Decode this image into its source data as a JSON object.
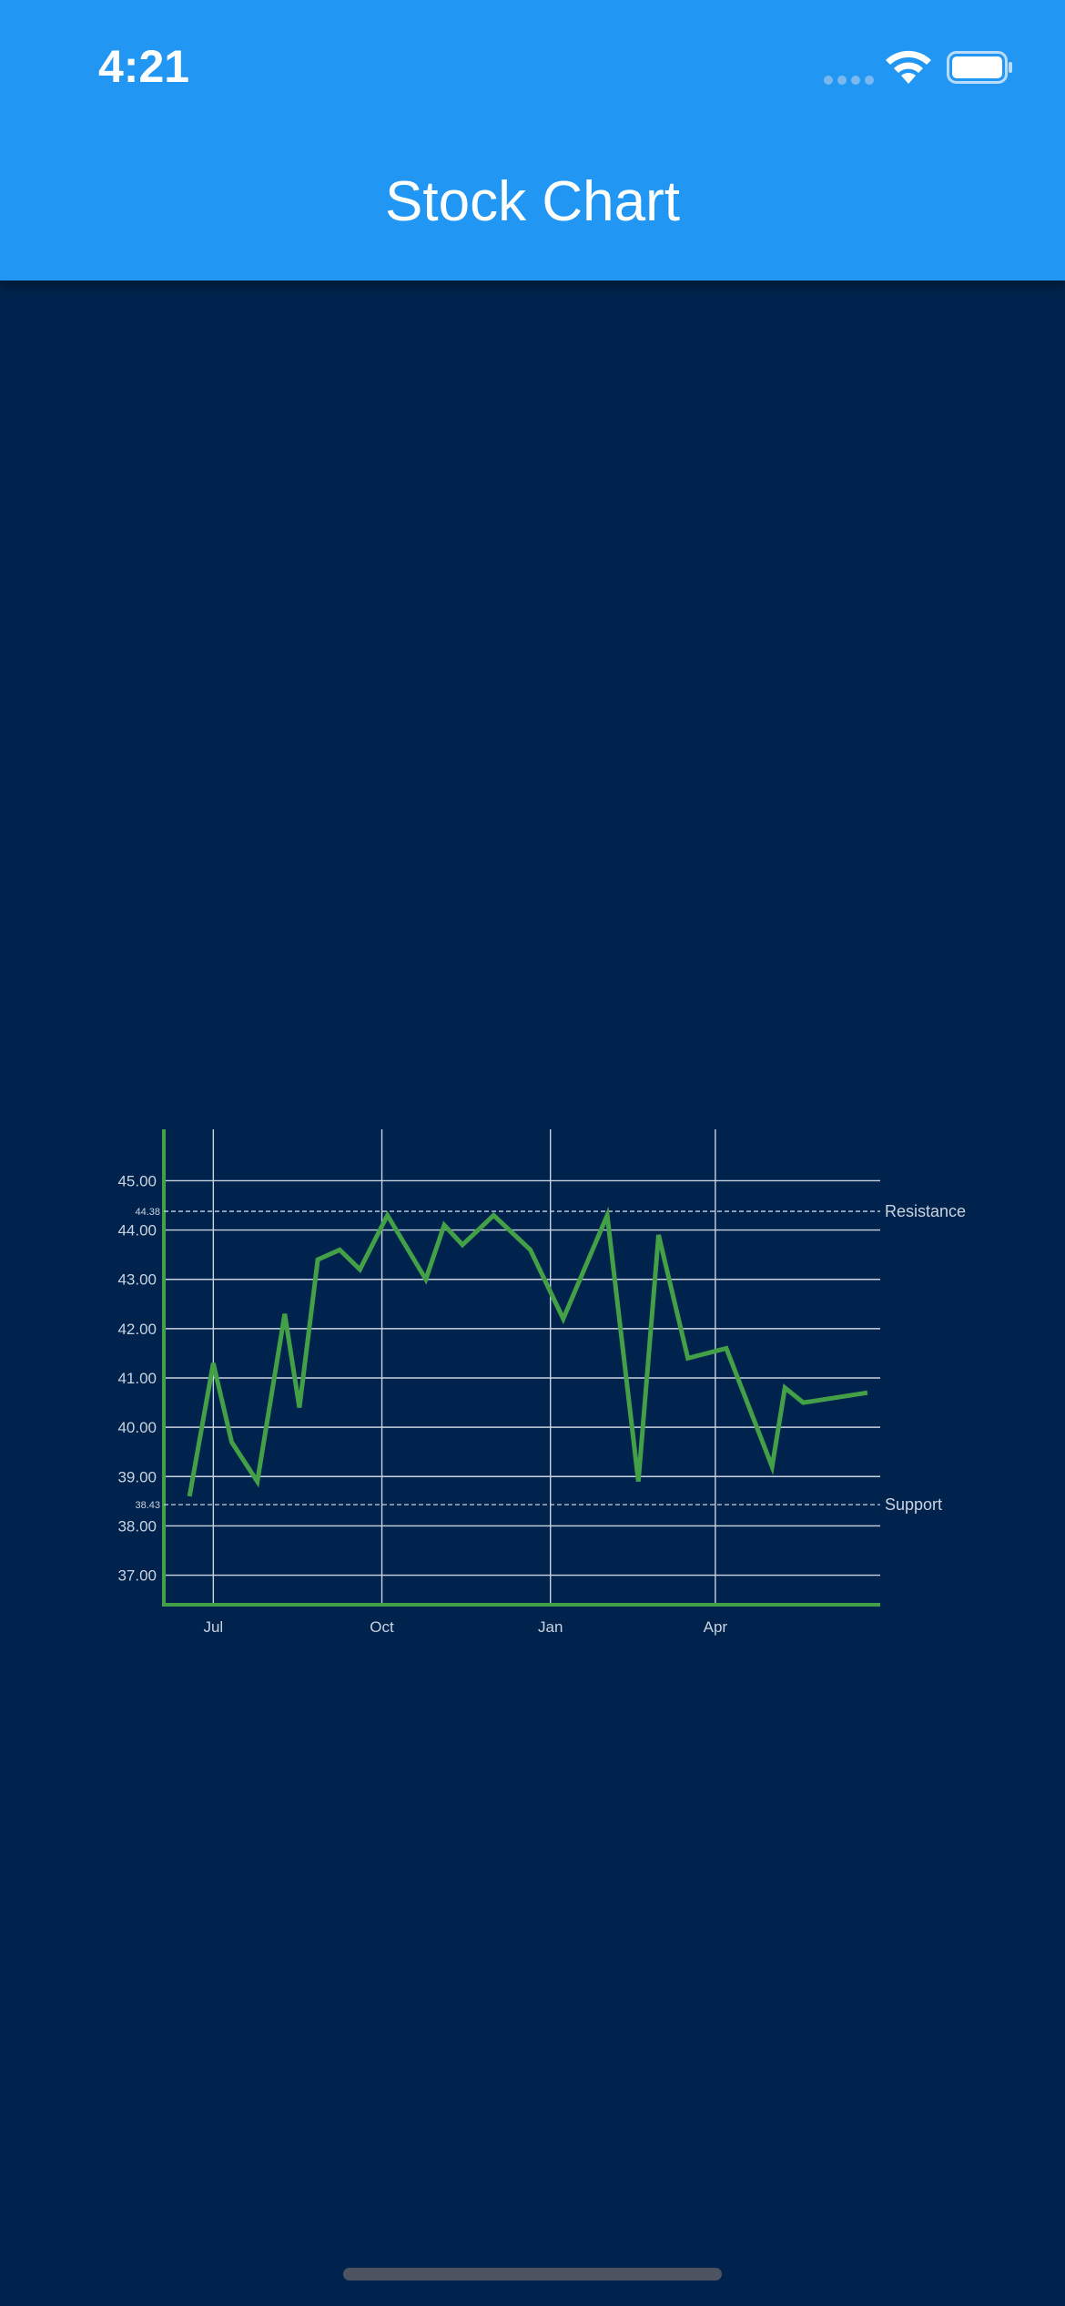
{
  "header": {
    "time": "4:21",
    "title": "Stock Chart"
  },
  "colors": {
    "header": "#2196f3",
    "background": "#00234d",
    "series": "#43a047",
    "grid": "#c9d3e0"
  },
  "chart_data": {
    "type": "line",
    "title": "",
    "xlabel": "",
    "ylabel": "",
    "y_ticks": [
      "37.00",
      "38.00",
      "39.00",
      "40.00",
      "41.00",
      "42.00",
      "43.00",
      "44.00",
      "45.00"
    ],
    "x_ticks": [
      {
        "label": "Jul",
        "date": "2018-07-01"
      },
      {
        "label": "Oct",
        "date": "2018-10-01"
      },
      {
        "label": "Jan",
        "date": "2019-01-01"
      },
      {
        "label": "Apr",
        "date": "2019-04-01"
      }
    ],
    "xlim": [
      "2018-06-04",
      "2019-06-30"
    ],
    "ylim": [
      36.4,
      45.6
    ],
    "grid": true,
    "series": [
      {
        "name": "",
        "values": [
          {
            "x": "2018-06-18",
            "y": 38.6
          },
          {
            "x": "2018-07-01",
            "y": 41.3
          },
          {
            "x": "2018-07-11",
            "y": 39.7
          },
          {
            "x": "2018-07-25",
            "y": 38.9
          },
          {
            "x": "2018-08-09",
            "y": 42.3
          },
          {
            "x": "2018-08-17",
            "y": 40.4
          },
          {
            "x": "2018-08-27",
            "y": 43.4
          },
          {
            "x": "2018-09-08",
            "y": 43.6
          },
          {
            "x": "2018-09-19",
            "y": 43.2
          },
          {
            "x": "2018-10-04",
            "y": 44.3
          },
          {
            "x": "2018-10-25",
            "y": 43.0
          },
          {
            "x": "2018-11-04",
            "y": 44.1
          },
          {
            "x": "2018-11-14",
            "y": 43.7
          },
          {
            "x": "2018-12-01",
            "y": 44.3
          },
          {
            "x": "2018-12-21",
            "y": 43.6
          },
          {
            "x": "2019-01-08",
            "y": 42.2
          },
          {
            "x": "2019-02-01",
            "y": 44.3
          },
          {
            "x": "2019-02-18",
            "y": 38.9
          },
          {
            "x": "2019-03-01",
            "y": 43.9
          },
          {
            "x": "2019-03-17",
            "y": 41.4
          },
          {
            "x": "2019-04-07",
            "y": 41.6
          },
          {
            "x": "2019-05-02",
            "y": 39.2
          },
          {
            "x": "2019-05-09",
            "y": 40.8
          },
          {
            "x": "2019-05-19",
            "y": 40.5
          },
          {
            "x": "2019-06-23",
            "y": 40.7
          }
        ]
      }
    ],
    "annotations": [
      {
        "label": "Resistance",
        "value_label": "44.38",
        "y": 44.38
      },
      {
        "label": "Support",
        "value_label": "38.43",
        "y": 38.43
      }
    ]
  }
}
